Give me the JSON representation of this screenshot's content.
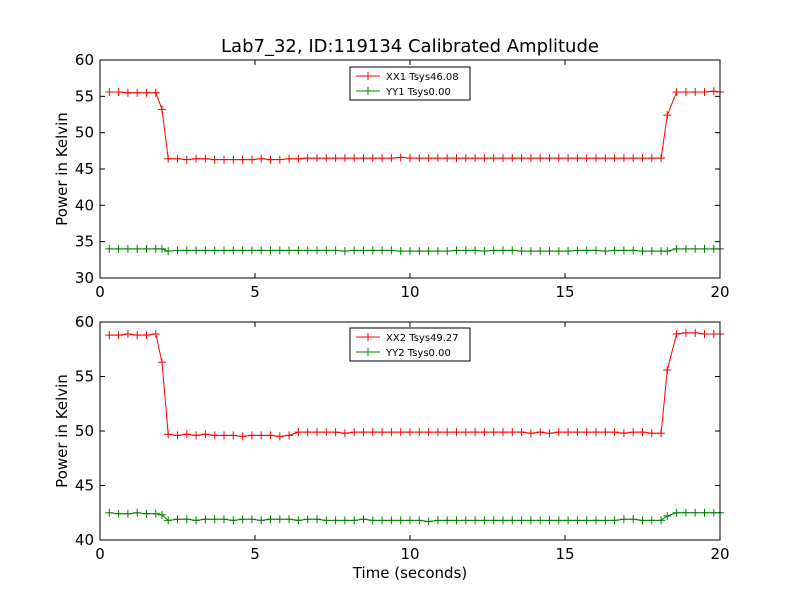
{
  "figure": {
    "title": "Lab7_32, ID:119134 Calibrated Amplitude",
    "colors": {
      "red": "#ff0000",
      "green": "#008000"
    }
  },
  "chart_data": [
    {
      "type": "line",
      "title": "Lab7_32, ID:119134 Calibrated Amplitude",
      "xlabel": "",
      "ylabel": "Power in Kelvin",
      "xlim": [
        0,
        20
      ],
      "ylim": [
        30,
        60
      ],
      "xticks": [
        0,
        5,
        10,
        15,
        20
      ],
      "yticks": [
        30,
        35,
        40,
        45,
        50,
        55,
        60
      ],
      "legend_position": "top-center",
      "grid": false,
      "x": [
        0.3,
        0.6,
        0.9,
        1.2,
        1.5,
        1.8,
        2.0,
        2.2,
        2.5,
        2.8,
        3.1,
        3.4,
        3.7,
        4.0,
        4.3,
        4.6,
        4.9,
        5.2,
        5.5,
        5.8,
        6.1,
        6.4,
        6.7,
        7.0,
        7.3,
        7.6,
        7.9,
        8.2,
        8.5,
        8.8,
        9.1,
        9.4,
        9.7,
        10.0,
        10.3,
        10.6,
        10.9,
        11.2,
        11.5,
        11.8,
        12.1,
        12.4,
        12.7,
        13.0,
        13.3,
        13.6,
        13.9,
        14.2,
        14.5,
        14.8,
        15.1,
        15.4,
        15.7,
        16.0,
        16.3,
        16.6,
        16.9,
        17.2,
        17.5,
        17.8,
        18.1,
        18.3,
        18.6,
        18.9,
        19.2,
        19.5,
        19.8,
        20.0
      ],
      "series": [
        {
          "name": "XX1 Tsys46.08",
          "color": "#ff0000",
          "values": [
            55.6,
            55.6,
            55.5,
            55.5,
            55.5,
            55.5,
            53.2,
            46.4,
            46.4,
            46.3,
            46.4,
            46.4,
            46.3,
            46.3,
            46.3,
            46.3,
            46.3,
            46.4,
            46.3,
            46.3,
            46.4,
            46.4,
            46.5,
            46.5,
            46.5,
            46.5,
            46.5,
            46.5,
            46.5,
            46.5,
            46.5,
            46.5,
            46.6,
            46.5,
            46.5,
            46.5,
            46.5,
            46.5,
            46.5,
            46.5,
            46.5,
            46.5,
            46.5,
            46.5,
            46.5,
            46.5,
            46.5,
            46.5,
            46.5,
            46.5,
            46.5,
            46.5,
            46.5,
            46.5,
            46.5,
            46.5,
            46.5,
            46.5,
            46.5,
            46.5,
            46.5,
            52.4,
            55.6,
            55.6,
            55.6,
            55.6,
            55.7,
            55.6
          ]
        },
        {
          "name": "YY1 Tsys0.00",
          "color": "#008000",
          "values": [
            34.0,
            34.0,
            34.0,
            34.0,
            34.0,
            34.0,
            34.0,
            33.7,
            33.8,
            33.8,
            33.8,
            33.8,
            33.8,
            33.8,
            33.8,
            33.8,
            33.8,
            33.8,
            33.8,
            33.8,
            33.8,
            33.8,
            33.8,
            33.8,
            33.8,
            33.8,
            33.7,
            33.8,
            33.8,
            33.8,
            33.8,
            33.8,
            33.7,
            33.7,
            33.7,
            33.7,
            33.7,
            33.7,
            33.8,
            33.8,
            33.8,
            33.7,
            33.8,
            33.8,
            33.8,
            33.7,
            33.7,
            33.7,
            33.7,
            33.7,
            33.7,
            33.8,
            33.8,
            33.8,
            33.7,
            33.8,
            33.8,
            33.8,
            33.7,
            33.7,
            33.7,
            33.7,
            34.0,
            34.0,
            34.0,
            34.0,
            34.0,
            34.0
          ]
        }
      ]
    },
    {
      "type": "line",
      "title": "",
      "xlabel": "Time (seconds)",
      "ylabel": "Power in Kelvin",
      "xlim": [
        0,
        20
      ],
      "ylim": [
        40,
        60
      ],
      "xticks": [
        0,
        5,
        10,
        15,
        20
      ],
      "yticks": [
        40,
        45,
        50,
        55,
        60
      ],
      "legend_position": "top-center",
      "grid": false,
      "x": [
        0.3,
        0.6,
        0.9,
        1.2,
        1.5,
        1.8,
        2.0,
        2.2,
        2.5,
        2.8,
        3.1,
        3.4,
        3.7,
        4.0,
        4.3,
        4.6,
        4.9,
        5.2,
        5.5,
        5.8,
        6.1,
        6.4,
        6.7,
        7.0,
        7.3,
        7.6,
        7.9,
        8.2,
        8.5,
        8.8,
        9.1,
        9.4,
        9.7,
        10.0,
        10.3,
        10.6,
        10.9,
        11.2,
        11.5,
        11.8,
        12.1,
        12.4,
        12.7,
        13.0,
        13.3,
        13.6,
        13.9,
        14.2,
        14.5,
        14.8,
        15.1,
        15.4,
        15.7,
        16.0,
        16.3,
        16.6,
        16.9,
        17.2,
        17.5,
        17.8,
        18.1,
        18.3,
        18.6,
        18.9,
        19.2,
        19.5,
        19.8,
        20.0
      ],
      "series": [
        {
          "name": "XX2 Tsys49.27",
          "color": "#ff0000",
          "values": [
            58.8,
            58.8,
            58.9,
            58.8,
            58.8,
            58.9,
            56.3,
            49.7,
            49.6,
            49.7,
            49.6,
            49.7,
            49.6,
            49.6,
            49.6,
            49.5,
            49.6,
            49.6,
            49.6,
            49.5,
            49.6,
            49.9,
            49.9,
            49.9,
            49.9,
            49.9,
            49.8,
            49.9,
            49.9,
            49.9,
            49.9,
            49.9,
            49.9,
            49.9,
            49.9,
            49.9,
            49.9,
            49.9,
            49.9,
            49.9,
            49.9,
            49.9,
            49.9,
            49.9,
            49.9,
            49.9,
            49.8,
            49.9,
            49.8,
            49.9,
            49.9,
            49.9,
            49.9,
            49.9,
            49.9,
            49.9,
            49.8,
            49.9,
            49.9,
            49.8,
            49.8,
            55.6,
            58.9,
            59.0,
            59.0,
            58.9,
            58.9,
            58.9
          ]
        },
        {
          "name": "YY2 Tsys0.00",
          "color": "#008000",
          "values": [
            42.5,
            42.4,
            42.4,
            42.5,
            42.4,
            42.4,
            42.3,
            41.8,
            41.9,
            41.9,
            41.8,
            41.9,
            41.9,
            41.9,
            41.8,
            41.9,
            41.9,
            41.8,
            41.9,
            41.9,
            41.9,
            41.8,
            41.9,
            41.9,
            41.8,
            41.8,
            41.8,
            41.8,
            41.9,
            41.8,
            41.8,
            41.8,
            41.8,
            41.8,
            41.8,
            41.7,
            41.8,
            41.8,
            41.8,
            41.8,
            41.8,
            41.8,
            41.8,
            41.8,
            41.8,
            41.8,
            41.8,
            41.8,
            41.8,
            41.8,
            41.8,
            41.8,
            41.8,
            41.8,
            41.8,
            41.8,
            41.9,
            41.9,
            41.8,
            41.8,
            41.8,
            42.2,
            42.5,
            42.5,
            42.5,
            42.5,
            42.5,
            42.5
          ]
        }
      ]
    }
  ]
}
